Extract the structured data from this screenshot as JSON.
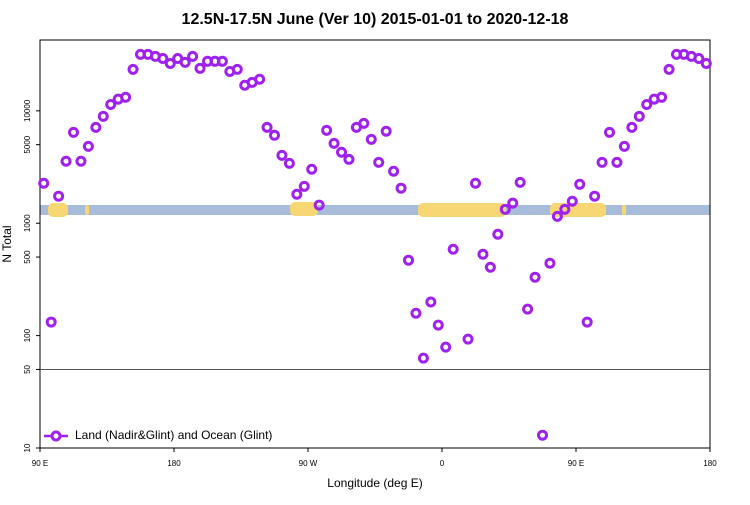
{
  "chart_data": {
    "type": "scatter",
    "title": "12.5N-17.5N June (Ver 10)   2015-01-01 to 2020-12-18",
    "xlabel": "Longitude (deg E)",
    "ylabel": "N Total",
    "log_y": true,
    "color": "#a020f0",
    "legend": "bottom-left",
    "hline": 50,
    "xlim": [
      90,
      540
    ],
    "xticks": [
      {
        "value": 90,
        "label": "90 E"
      },
      {
        "value": 180,
        "label": "180"
      },
      {
        "value": 270,
        "label": "90 W"
      },
      {
        "value": 360,
        "label": "0"
      },
      {
        "value": 450,
        "label": "90 E"
      },
      {
        "value": 540,
        "label": "180"
      }
    ],
    "ylim": [
      10,
      42700
    ],
    "yticks": [
      10,
      50,
      100,
      500,
      1000,
      5000,
      10000
    ],
    "series": [
      {
        "name": "Land (Nadir&Glint) and Ocean (Glint)",
        "color": "#a020f0",
        "x": [
          92.5,
          97.5,
          102.5,
          107.5,
          112.5,
          117.5,
          122.5,
          127.5,
          132.5,
          137.5,
          142.5,
          147.5,
          152.5,
          157.5,
          162.5,
          167.5,
          172.5,
          177.5,
          182.5,
          187.5,
          192.5,
          197.5,
          202.5,
          207.5,
          212.5,
          217.5,
          222.5,
          227.5,
          232.5,
          237.5,
          242.5,
          247.5,
          252.5,
          257.5,
          262.5,
          267.5,
          272.5,
          277.5,
          282.5,
          287.5,
          292.5,
          297.5,
          302.5,
          307.5,
          312.5,
          317.5,
          322.5,
          327.5,
          332.5,
          337.5,
          342.5,
          347.5,
          352.5,
          357.5,
          362.5,
          367.5,
          377.5,
          382.5,
          387.5,
          392.5,
          397.5,
          402.5,
          407.5,
          412.5,
          417.5,
          422.5,
          427.5,
          432.5,
          437.5,
          442.5,
          447.5,
          452.5,
          457.5,
          462.5,
          467.5,
          472.5,
          477.5,
          482.5,
          487.5,
          492.5,
          497.5,
          502.5,
          507.5,
          512.5,
          517.5,
          522.5,
          527.5,
          532.5,
          537.5
        ],
        "values": [
          2270,
          132,
          1740,
          3560,
          6440,
          3560,
          4830,
          7130,
          8940,
          11400,
          12700,
          13200,
          23400,
          31800,
          31800,
          30500,
          29200,
          26400,
          29200,
          27000,
          30500,
          23900,
          27600,
          27600,
          27600,
          22400,
          23400,
          16900,
          17900,
          19100,
          7130,
          6060,
          4020,
          3410,
          1810,
          2130,
          3020,
          1450,
          6710,
          5140,
          4280,
          3700,
          7130,
          7740,
          5580,
          3480,
          6580,
          2900,
          2050,
          469,
          158,
          63,
          199,
          124,
          79,
          587,
          93,
          2270,
          530,
          406,
          798,
          1330,
          1510,
          2310,
          172,
          331,
          13,
          441,
          1150,
          1330,
          1570,
          2220,
          132,
          1740,
          3480,
          6440,
          3480,
          4830,
          7130,
          8940,
          11400,
          12700,
          13200,
          23400,
          31800,
          31800,
          30500,
          29200,
          26400
        ]
      }
    ]
  }
}
